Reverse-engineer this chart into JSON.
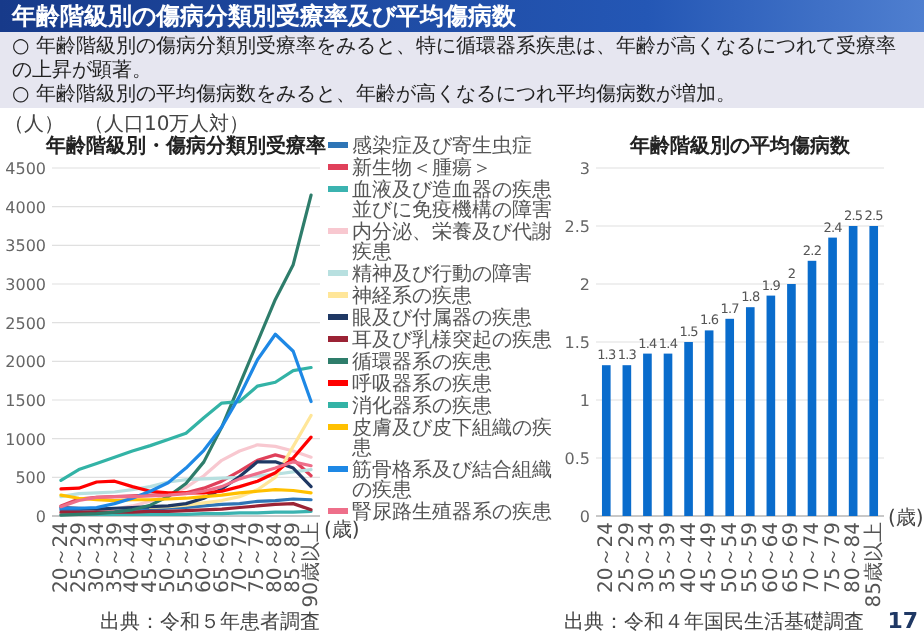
{
  "chart_data": [
    {
      "type": "line",
      "title": "年齢階級別・傷病分類別受療率",
      "ylabel": "（人）　（人口10万人対）",
      "xlabel": "(歳)",
      "annotations": [
        "年齢階級別の傷病分類別受療率及び平均傷病数",
        "○ 年齢階級別の傷病分類別受療率をみると、特に循環器系疾患は、年齢が高くなるにつれて受療率の上昇が顕著。",
        "○ 年齢階級別の平均傷病数をみると、年齢が高くなるにつれ平均傷病数が増加。",
        "出典：令和５年患者調査"
      ],
      "categories": [
        "20～24",
        "25～29",
        "30～34",
        "35～39",
        "40～44",
        "45～49",
        "50～54",
        "55～59",
        "60～64",
        "65～69",
        "70～74",
        "75～79",
        "80～84",
        "85～89",
        "90歳以上"
      ],
      "series": [
        {
          "name": "感染症及び寄生虫症",
          "color": "#2e75b6",
          "values": [
            80,
            70,
            70,
            80,
            90,
            90,
            100,
            110,
            130,
            150,
            160,
            190,
            200,
            220,
            210
          ]
        },
        {
          "name": "新生物＜腫瘍＞",
          "color": "#e0405a",
          "values": [
            130,
            220,
            240,
            250,
            260,
            270,
            280,
            300,
            360,
            450,
            580,
            720,
            790,
            730,
            520
          ]
        },
        {
          "name": "血液及び造血器の疾患並びに免疫機構の障害",
          "color": "#3bb3b0",
          "values": [
            20,
            20,
            20,
            20,
            20,
            20,
            20,
            20,
            30,
            30,
            40,
            40,
            50,
            50,
            60
          ]
        },
        {
          "name": "内分泌、栄養及び代謝疾患",
          "color": "#f8c8d0",
          "values": [
            30,
            40,
            60,
            90,
            130,
            190,
            260,
            370,
            520,
            720,
            840,
            920,
            900,
            840,
            760
          ]
        },
        {
          "name": "精神及び行動の障害",
          "color": "#b8e0e0",
          "values": [
            250,
            290,
            300,
            310,
            340,
            380,
            440,
            470,
            480,
            490,
            500,
            520,
            540,
            570,
            600
          ]
        },
        {
          "name": "神経系の疾患",
          "color": "#ffe699",
          "values": [
            null,
            null,
            null,
            null,
            null,
            110,
            120,
            140,
            170,
            200,
            250,
            340,
            500,
            900,
            1300
          ]
        },
        {
          "name": "眼及び付属器の疾患",
          "color": "#1f3864",
          "values": [
            110,
            100,
            90,
            100,
            110,
            120,
            130,
            160,
            230,
            350,
            510,
            700,
            700,
            620,
            380
          ]
        },
        {
          "name": "耳及び乳様突起の疾患",
          "color": "#9b2335",
          "values": [
            50,
            50,
            50,
            50,
            50,
            60,
            60,
            70,
            80,
            90,
            110,
            130,
            150,
            160,
            80
          ]
        },
        {
          "name": "循環器系の疾患",
          "color": "#2e7d6b",
          "values": [
            10,
            20,
            30,
            50,
            80,
            140,
            250,
            420,
            700,
            1150,
            1700,
            2250,
            2800,
            3250,
            4150
          ]
        },
        {
          "name": "呼吸器系の疾患",
          "color": "#ff0000",
          "values": [
            350,
            360,
            440,
            450,
            380,
            320,
            300,
            300,
            300,
            320,
            380,
            450,
            560,
            750,
            1020
          ]
        },
        {
          "name": "消化器系の疾患",
          "color": "#33b3a6",
          "values": [
            460,
            600,
            680,
            760,
            840,
            910,
            990,
            1070,
            1270,
            1460,
            1480,
            1680,
            1730,
            1880,
            1920
          ]
        },
        {
          "name": "皮膚及び皮下組織の疾患",
          "color": "#ffc000",
          "values": [
            270,
            230,
            210,
            200,
            210,
            210,
            220,
            230,
            250,
            270,
            300,
            320,
            340,
            330,
            300
          ]
        },
        {
          "name": "筋骨格系及び結合組織の疾患",
          "color": "#1e88e5",
          "values": [
            100,
            100,
            110,
            160,
            230,
            320,
            430,
            620,
            850,
            1150,
            1550,
            2020,
            2350,
            2130,
            1480
          ]
        },
        {
          "name": "腎尿路生殖器系の疾患",
          "color": "#ee6f8a",
          "values": [
            120,
            200,
            240,
            250,
            250,
            260,
            270,
            290,
            320,
            380,
            480,
            550,
            620,
            700,
            650
          ]
        }
      ],
      "ylim": [
        0,
        4500
      ],
      "yticks": [
        0,
        500,
        1000,
        1500,
        2000,
        2500,
        3000,
        3500,
        4000,
        4500
      ],
      "grid": "y",
      "legend": "right"
    },
    {
      "type": "bar",
      "title": "年齢階級別の平均傷病数",
      "xlabel": "(歳)",
      "annotations": [
        "出典：令和４年国民生活基礎調査",
        "17"
      ],
      "categories": [
        "20～24",
        "25～29",
        "30～34",
        "35～39",
        "40～44",
        "45～49",
        "50～54",
        "55～59",
        "60～64",
        "65～69",
        "70～74",
        "75～79",
        "80～84",
        "85歳以上"
      ],
      "values": [
        1.3,
        1.3,
        1.4,
        1.4,
        1.5,
        1.6,
        1.7,
        1.8,
        1.9,
        2,
        2.2,
        2.4,
        2.5,
        2.5
      ],
      "color": "#0a6ccc",
      "ylim": [
        0,
        3
      ],
      "yticks": [
        0,
        0.5,
        1,
        1.5,
        2,
        2.5,
        3
      ],
      "grid": "y",
      "data_labels": true
    }
  ]
}
